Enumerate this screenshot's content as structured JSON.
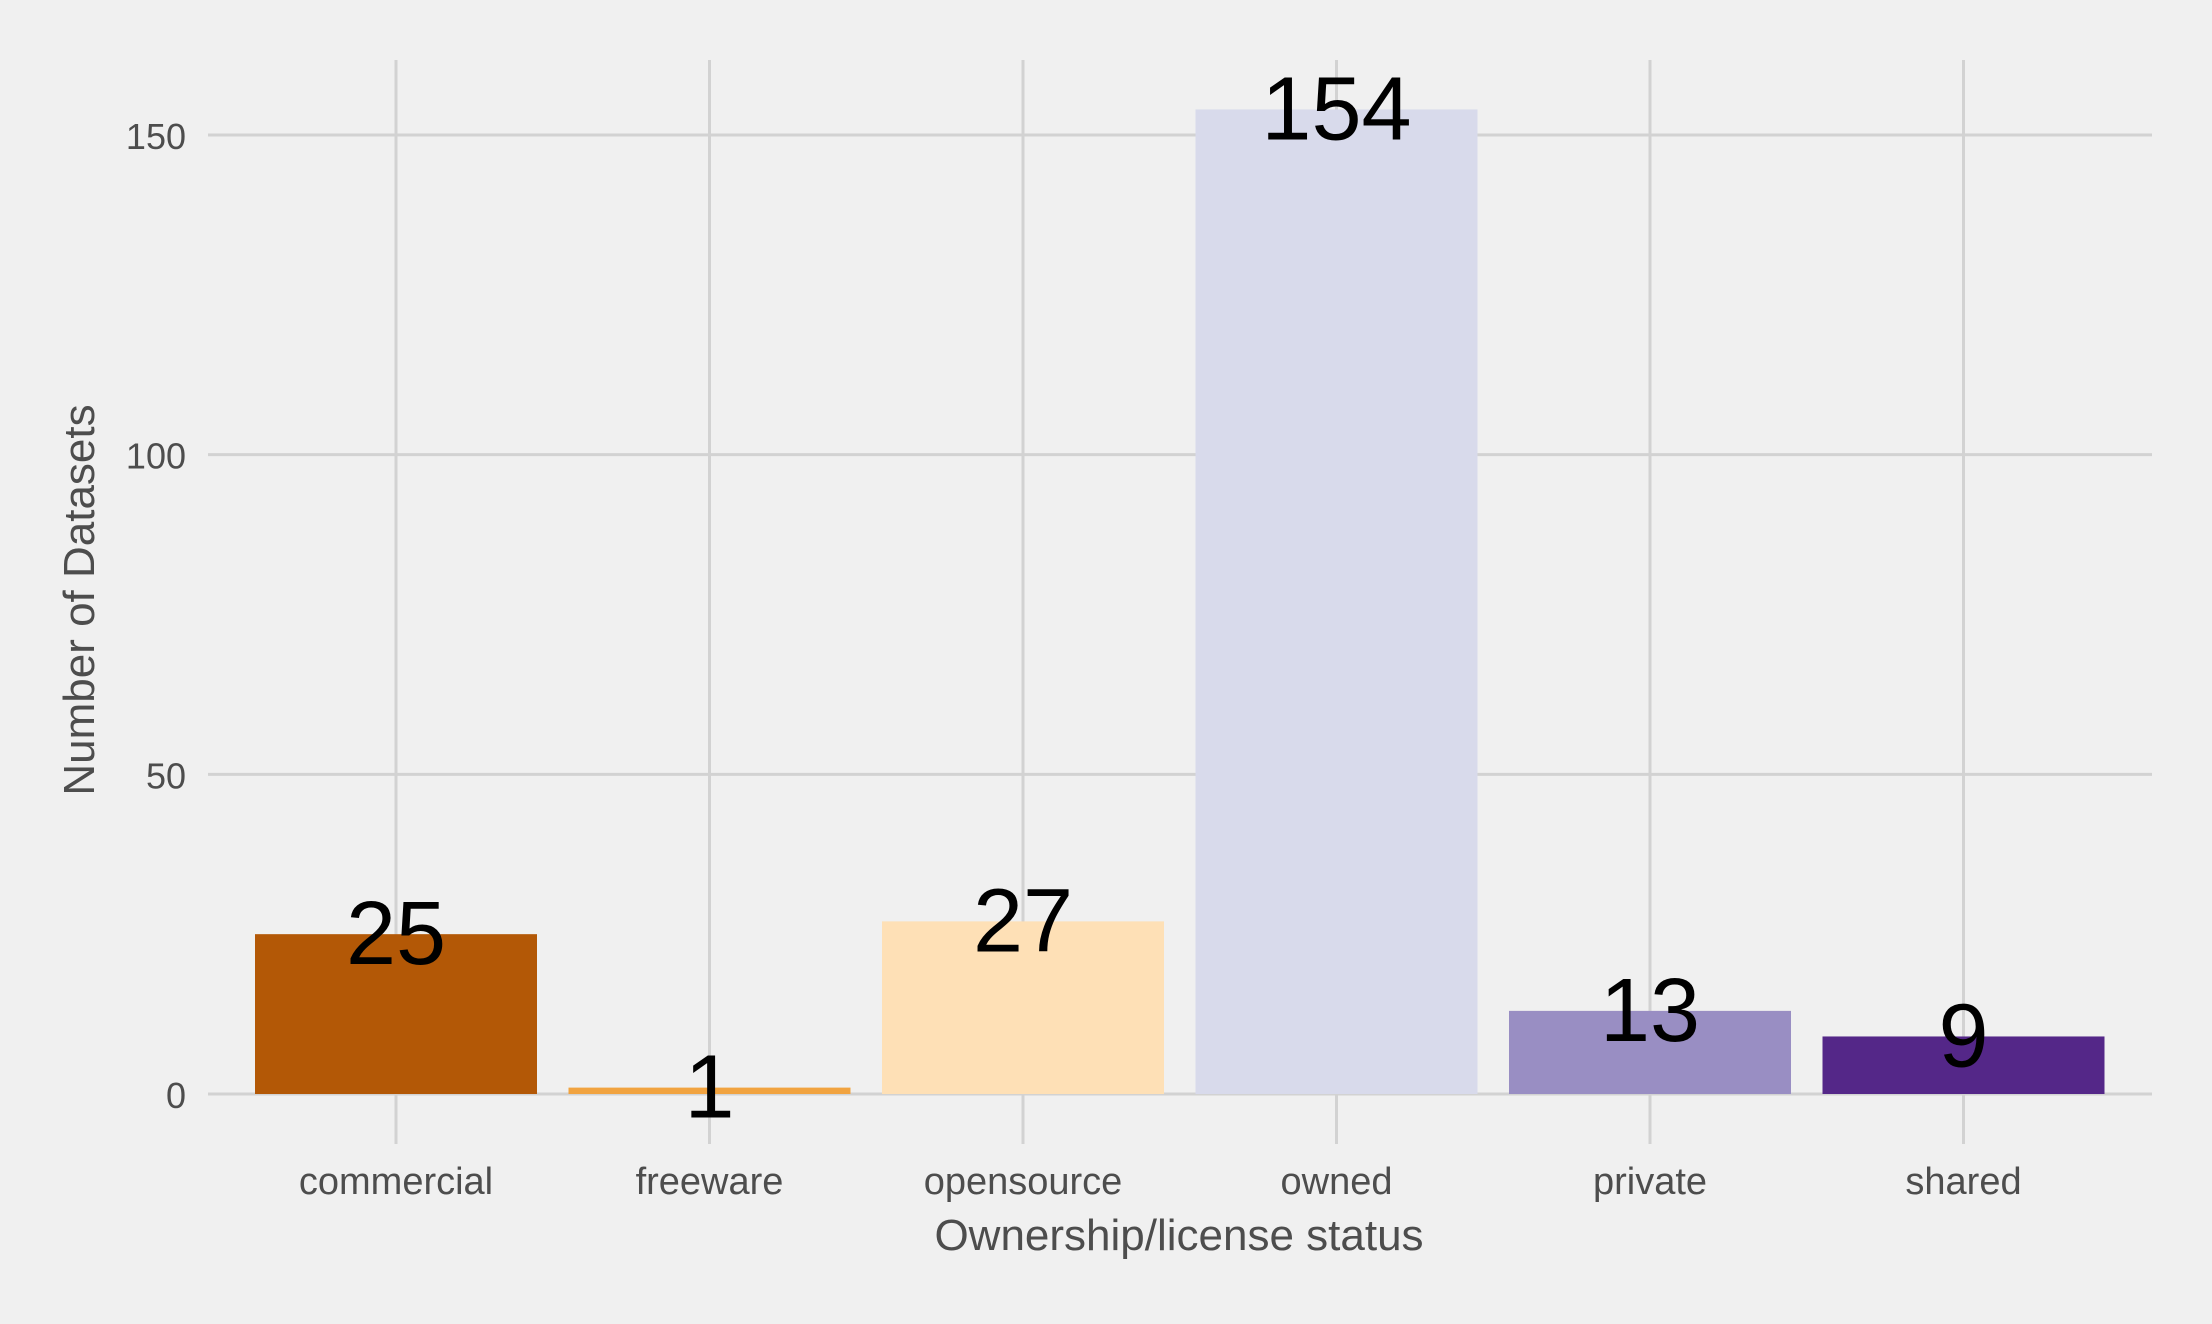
{
  "chart_data": {
    "type": "bar",
    "categories": [
      "commercial",
      "freeware",
      "opensource",
      "owned",
      "private",
      "shared"
    ],
    "values": [
      25,
      1,
      27,
      154,
      13,
      9
    ],
    "colors": [
      "#b35806",
      "#f1a340",
      "#fee0b6",
      "#d8daeb",
      "#998ec3",
      "#542788"
    ],
    "title": "",
    "xlabel": "Ownership/license status",
    "ylabel": "Number of Datasets",
    "ylim": [
      0,
      160
    ],
    "yticks": [
      0,
      50,
      100,
      150
    ],
    "grid": true,
    "legend": "none"
  }
}
